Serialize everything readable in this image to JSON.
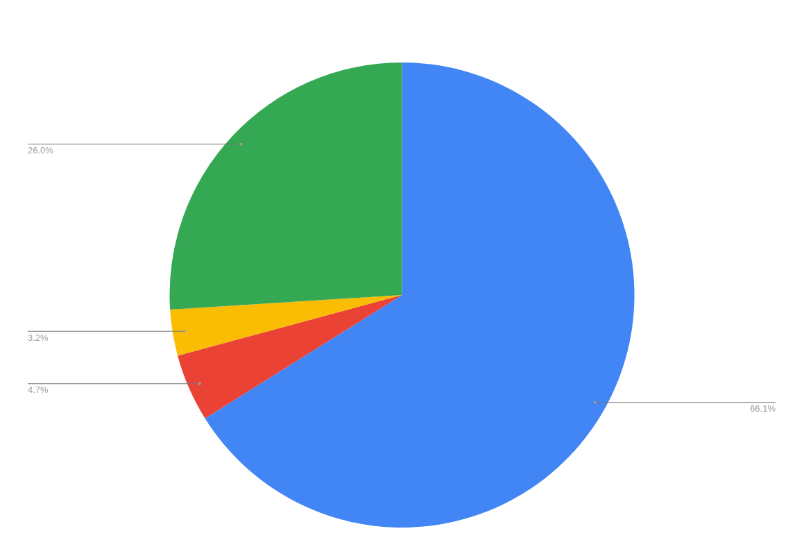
{
  "chart_data": {
    "type": "pie",
    "categories": [
      null,
      null,
      null,
      null
    ],
    "values": [
      66.1,
      4.7,
      3.2,
      26.0
    ],
    "colors": [
      "#4285f4",
      "#ea4335",
      "#fbbc04",
      "#34a853"
    ],
    "value_labels": [
      "66.1%",
      "4.7%",
      "3.2%",
      "26.0%"
    ],
    "legend": false
  }
}
